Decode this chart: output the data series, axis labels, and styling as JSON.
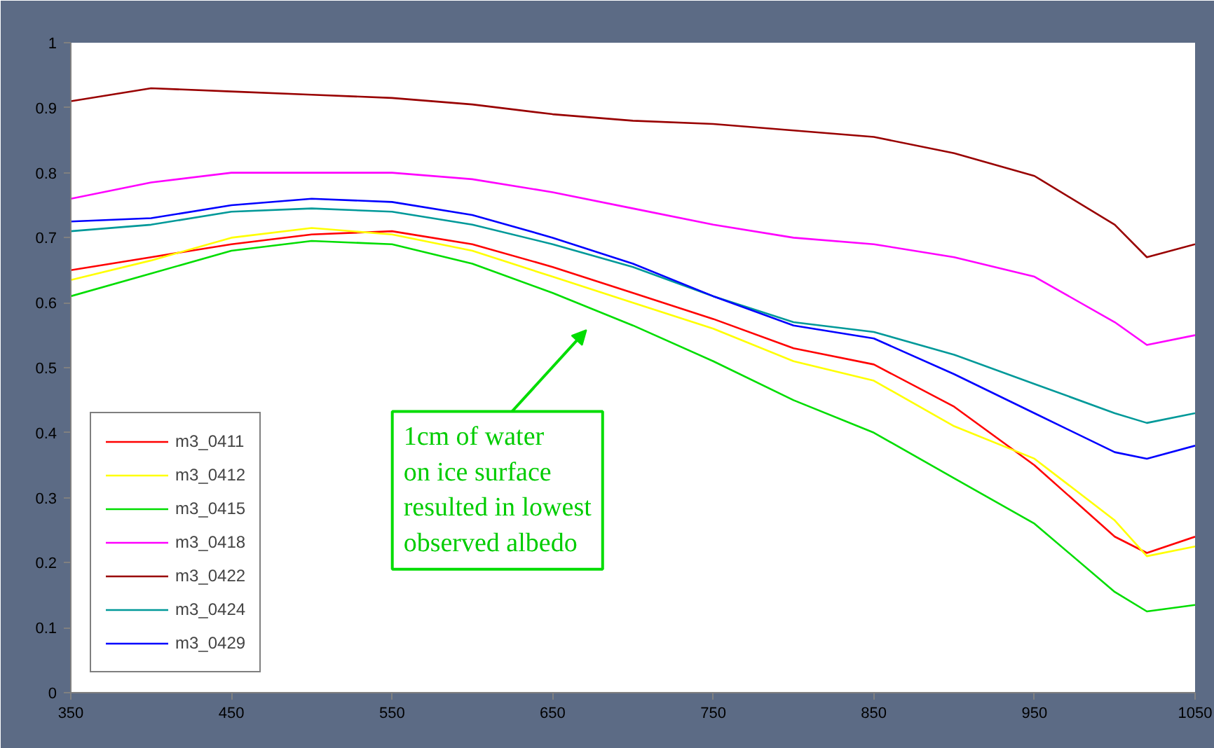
{
  "chart_data": {
    "type": "line",
    "x": [
      350,
      400,
      450,
      500,
      550,
      600,
      650,
      700,
      750,
      800,
      850,
      900,
      950,
      1000,
      1020,
      1050
    ],
    "series": [
      {
        "name": "m3_0411",
        "color": "#ff0000",
        "values": [
          0.65,
          0.67,
          0.69,
          0.705,
          0.71,
          0.69,
          0.655,
          0.615,
          0.575,
          0.53,
          0.505,
          0.44,
          0.35,
          0.24,
          0.215,
          0.24
        ]
      },
      {
        "name": "m3_0412",
        "color": "#ffff00",
        "values": [
          0.635,
          0.665,
          0.7,
          0.715,
          0.705,
          0.68,
          0.64,
          0.6,
          0.56,
          0.51,
          0.48,
          0.41,
          0.36,
          0.265,
          0.21,
          0.225
        ]
      },
      {
        "name": "m3_0415",
        "color": "#00dd00",
        "values": [
          0.61,
          0.645,
          0.68,
          0.695,
          0.69,
          0.66,
          0.615,
          0.565,
          0.51,
          0.45,
          0.4,
          0.33,
          0.26,
          0.155,
          0.125,
          0.135
        ]
      },
      {
        "name": "m3_0418",
        "color": "#ff00ff",
        "values": [
          0.76,
          0.785,
          0.8,
          0.8,
          0.8,
          0.79,
          0.77,
          0.745,
          0.72,
          0.7,
          0.69,
          0.67,
          0.64,
          0.57,
          0.535,
          0.55
        ]
      },
      {
        "name": "m3_0422",
        "color": "#990000",
        "values": [
          0.91,
          0.93,
          0.925,
          0.92,
          0.915,
          0.905,
          0.89,
          0.88,
          0.875,
          0.865,
          0.855,
          0.83,
          0.795,
          0.72,
          0.67,
          0.69
        ]
      },
      {
        "name": "m3_0424",
        "color": "#009999",
        "values": [
          0.71,
          0.72,
          0.74,
          0.745,
          0.74,
          0.72,
          0.69,
          0.655,
          0.61,
          0.57,
          0.555,
          0.52,
          0.475,
          0.43,
          0.415,
          0.43
        ]
      },
      {
        "name": "m3_0429",
        "color": "#0000ff",
        "values": [
          0.725,
          0.73,
          0.75,
          0.76,
          0.755,
          0.735,
          0.7,
          0.66,
          0.61,
          0.565,
          0.545,
          0.49,
          0.43,
          0.37,
          0.36,
          0.38
        ]
      }
    ],
    "xlim": [
      350,
      1050
    ],
    "xticks": [
      350,
      450,
      550,
      650,
      750,
      850,
      950,
      1050
    ],
    "ylim": [
      0,
      1
    ],
    "yticks": [
      0,
      0.1,
      0.2,
      0.3,
      0.4,
      0.5,
      0.6,
      0.7,
      0.8,
      0.9,
      1
    ],
    "grid": false,
    "legend": "bottom left",
    "marker": "none",
    "line_style": "solid",
    "annotations": [
      "1cm of water\non ice surface\nresulted in lowest\nobserved albedo"
    ]
  }
}
